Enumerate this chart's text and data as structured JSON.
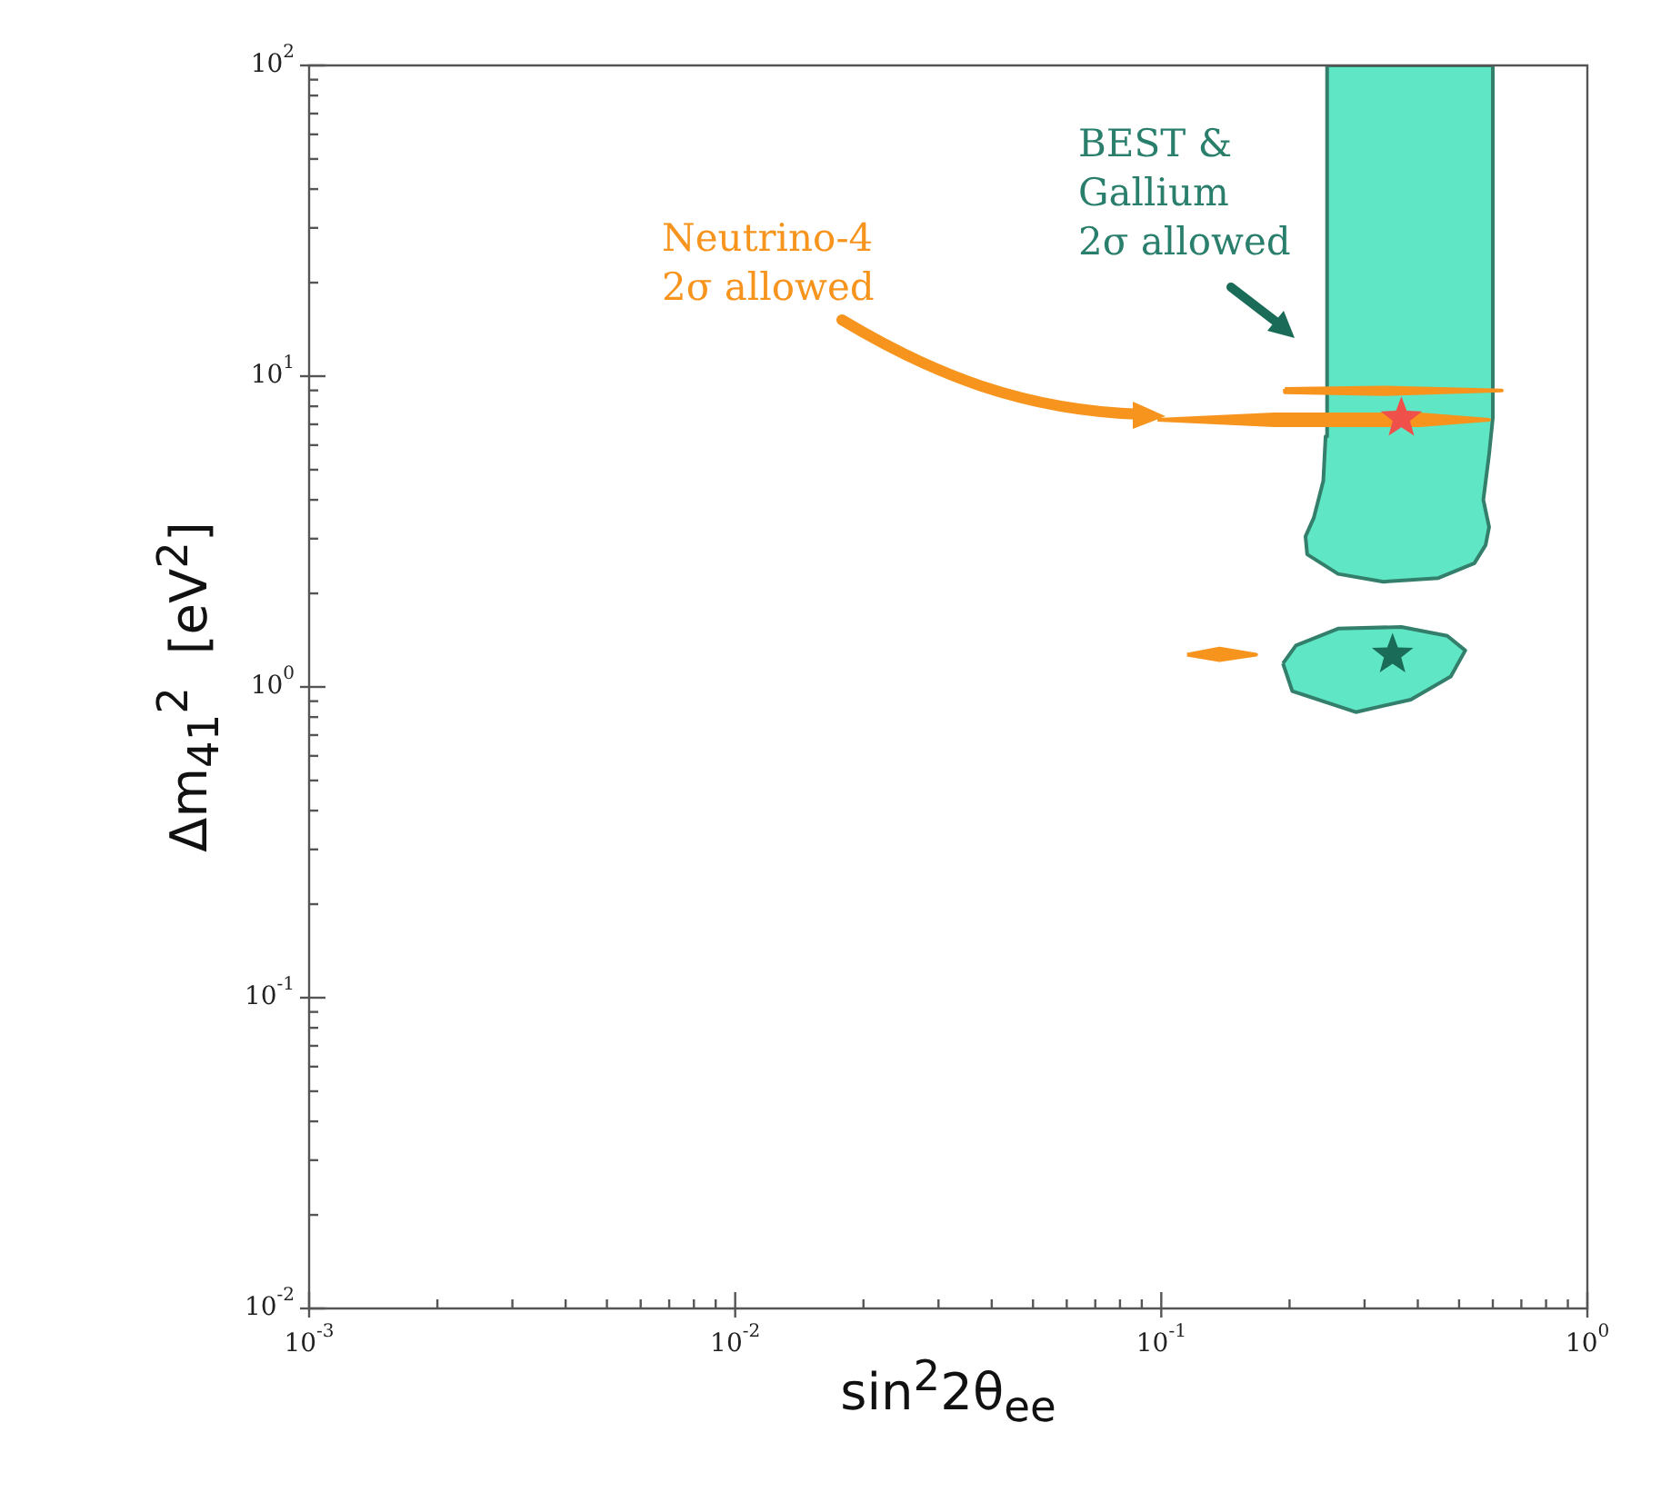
{
  "chart_data": {
    "type": "area",
    "xlabel": "sin$^{2}$2θ$_{ee}$",
    "ylabel": "Δm$_{41}$$^{2}$  [eV$^{2}$]",
    "log": "xy",
    "grid": false,
    "legend": false,
    "xlim": [
      0.001,
      1
    ],
    "ylim": [
      0.01,
      100
    ],
    "xticks": [
      {
        "value": 0.001,
        "label": "10$^{-3}$"
      },
      {
        "value": 0.002,
        "label": null
      },
      {
        "value": 0.003,
        "label": null
      },
      {
        "value": 0.004,
        "label": null
      },
      {
        "value": 0.005,
        "label": null
      },
      {
        "value": 0.006,
        "label": null
      },
      {
        "value": 0.007,
        "label": null
      },
      {
        "value": 0.008,
        "label": null
      },
      {
        "value": 0.009,
        "label": null
      },
      {
        "value": 0.01,
        "label": "10$^{-2}$"
      },
      {
        "value": 0.02,
        "label": null
      },
      {
        "value": 0.03,
        "label": null
      },
      {
        "value": 0.04,
        "label": null
      },
      {
        "value": 0.05,
        "label": null
      },
      {
        "value": 0.06,
        "label": null
      },
      {
        "value": 0.07,
        "label": null
      },
      {
        "value": 0.08,
        "label": null
      },
      {
        "value": 0.09,
        "label": null
      },
      {
        "value": 0.1,
        "label": "10$^{-1}$"
      },
      {
        "value": 0.2,
        "label": null
      },
      {
        "value": 0.3,
        "label": null
      },
      {
        "value": 0.4,
        "label": null
      },
      {
        "value": 0.5,
        "label": null
      },
      {
        "value": 0.6,
        "label": null
      },
      {
        "value": 0.7,
        "label": null
      },
      {
        "value": 0.8,
        "label": null
      },
      {
        "value": 0.9,
        "label": null
      },
      {
        "value": 1,
        "label": "10$^{0}$"
      }
    ],
    "yticks": [
      {
        "value": 0.01,
        "label": "10$^{-2}$"
      },
      {
        "value": 0.02,
        "label": null
      },
      {
        "value": 0.03,
        "label": null
      },
      {
        "value": 0.04,
        "label": null
      },
      {
        "value": 0.05,
        "label": null
      },
      {
        "value": 0.06,
        "label": null
      },
      {
        "value": 0.07,
        "label": null
      },
      {
        "value": 0.08,
        "label": null
      },
      {
        "value": 0.09,
        "label": null
      },
      {
        "value": 0.1,
        "label": "10$^{-1}$"
      },
      {
        "value": 0.2,
        "label": null
      },
      {
        "value": 0.3,
        "label": null
      },
      {
        "value": 0.4,
        "label": null
      },
      {
        "value": 0.5,
        "label": null
      },
      {
        "value": 0.6,
        "label": null
      },
      {
        "value": 0.7,
        "label": null
      },
      {
        "value": 0.8,
        "label": null
      },
      {
        "value": 0.9,
        "label": null
      },
      {
        "value": 1,
        "label": "10$^{0}$"
      },
      {
        "value": 2,
        "label": null
      },
      {
        "value": 3,
        "label": null
      },
      {
        "value": 4,
        "label": null
      },
      {
        "value": 5,
        "label": null
      },
      {
        "value": 6,
        "label": null
      },
      {
        "value": 7,
        "label": null
      },
      {
        "value": 8,
        "label": null
      },
      {
        "value": 9,
        "label": null
      },
      {
        "value": 10,
        "label": "10$^{1}$"
      },
      {
        "value": 20,
        "label": null
      },
      {
        "value": 30,
        "label": null
      },
      {
        "value": 40,
        "label": null
      },
      {
        "value": 50,
        "label": null
      },
      {
        "value": 60,
        "label": null
      },
      {
        "value": 70,
        "label": null
      },
      {
        "value": 80,
        "label": null
      },
      {
        "value": 90,
        "label": null
      },
      {
        "value": 100,
        "label": "10$^{2}$"
      }
    ],
    "series": [
      {
        "color": "#5fe6c4",
        "x": [
          0.245,
          0.6,
          0.6,
          0.588,
          0.57,
          0.588,
          0.577,
          0.543,
          0.447,
          0.332,
          0.26,
          0.22,
          0.218,
          0.228,
          0.24,
          0.243,
          0.245
        ],
        "values": [
          100,
          100,
          7.33,
          5.6,
          4.0,
          3.27,
          2.86,
          2.5,
          2.24,
          2.18,
          2.31,
          2.67,
          3.05,
          3.5,
          4.6,
          6.4,
          100
        ]
      },
      {
        "color": "#5fe6c4",
        "x": [
          0.193,
          0.207,
          0.26,
          0.366,
          0.469,
          0.517,
          0.478,
          0.385,
          0.286,
          0.203,
          0.193
        ],
        "values": [
          1.19,
          1.36,
          1.54,
          1.56,
          1.46,
          1.31,
          1.08,
          0.91,
          0.83,
          0.97,
          1.19
        ]
      },
      {
        "color": "#f7941d",
        "x": [
          0.195,
          0.332,
          0.63,
          0.332,
          0.195,
          0.195
        ],
        "values": [
          9.1,
          9.2,
          8.99,
          8.75,
          8.87,
          9.1
        ]
      },
      {
        "color": "#f7941d",
        "x": [
          0.098,
          0.184,
          0.405,
          0.588,
          0.405,
          0.184,
          0.098
        ],
        "values": [
          7.24,
          7.54,
          7.54,
          7.24,
          6.95,
          6.95,
          7.24
        ]
      },
      {
        "color": "#f7941d",
        "x": [
          0.115,
          0.137,
          0.167,
          0.137,
          0.115
        ],
        "values": [
          1.27,
          1.33,
          1.27,
          1.22,
          1.27
        ]
      },
      {
        "type": "scatter",
        "marker": "star",
        "color": "#f0504a",
        "x": [
          0.366
        ],
        "values": [
          7.33
        ]
      },
      {
        "type": "scatter",
        "marker": "star",
        "color": "#1a6b58",
        "x": [
          0.349
        ],
        "values": [
          1.27
        ]
      }
    ],
    "annotations": [
      "Neutrino-4\n2σ allowed",
      "BEST &\nGallium\n2σ allowed"
    ]
  }
}
